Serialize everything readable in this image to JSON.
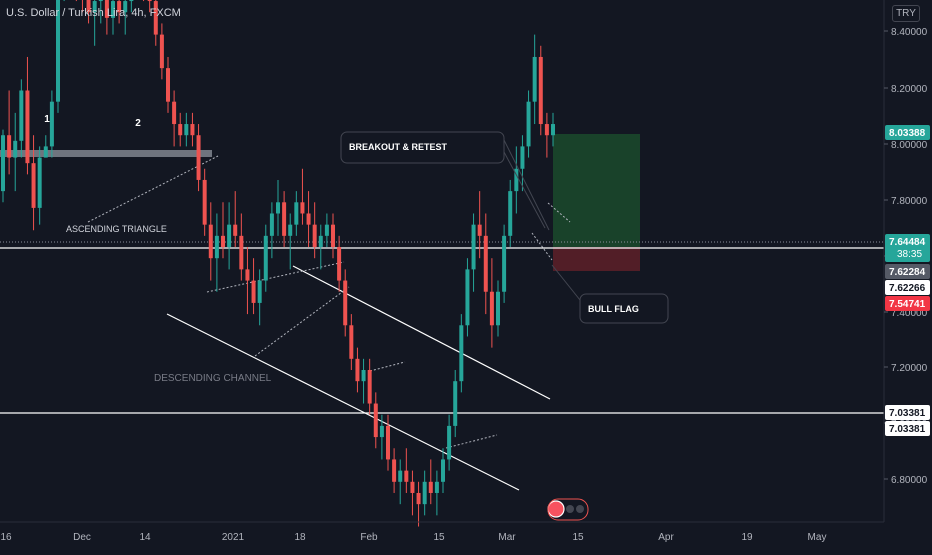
{
  "header": {
    "title": "U.S. Dollar / Turkish Lira, 4h, FXCM",
    "currency": "TRY"
  },
  "chart_data": {
    "type": "candlestick",
    "symbol": "USDTRY",
    "interval": "4h",
    "y_ticks": [
      "8.40000",
      "8.20000",
      "8.00000",
      "7.80000",
      "7.60000",
      "7.40000",
      "7.20000",
      "7.00000",
      "6.80000"
    ],
    "x_ticks": [
      "16",
      "Dec",
      "14",
      "2021",
      "18",
      "Feb",
      "15",
      "Mar",
      "15",
      "Apr",
      "19",
      "May"
    ],
    "price_labels": [
      {
        "value": "8.03388",
        "color": "#26a69a",
        "kind": "target"
      },
      {
        "value": "7.64484",
        "sub": "38:35",
        "color": "#26a69a",
        "kind": "last-price"
      },
      {
        "value": "7.62284",
        "color": "#555a66",
        "kind": "level"
      },
      {
        "value": "7.62266",
        "color": "#ffffff",
        "kind": "level"
      },
      {
        "value": "7.54741",
        "color": "#f23645",
        "kind": "stop"
      },
      {
        "value": "7.03381",
        "color": "#ffffff",
        "kind": "level"
      },
      {
        "value": "7.03381",
        "color": "#ffffff",
        "kind": "level"
      }
    ],
    "ohlc_path": [
      [
        7.52,
        7.63,
        7.5,
        7.62
      ],
      [
        7.62,
        7.7,
        7.55,
        7.58
      ],
      [
        7.58,
        7.66,
        7.52,
        7.61
      ],
      [
        7.61,
        7.72,
        7.58,
        7.7
      ],
      [
        7.7,
        7.76,
        7.55,
        7.57
      ],
      [
        7.57,
        7.62,
        7.45,
        7.49
      ],
      [
        7.49,
        7.6,
        7.46,
        7.58
      ],
      [
        7.58,
        7.62,
        7.58,
        7.6
      ],
      [
        7.6,
        7.7,
        7.58,
        7.68
      ],
      [
        7.68,
        7.92,
        7.66,
        7.9
      ],
      [
        7.9,
        8.02,
        7.86,
        7.98
      ],
      [
        7.98,
        8.03,
        7.9,
        7.94
      ],
      [
        7.94,
        7.99,
        7.86,
        7.9
      ],
      [
        7.9,
        7.96,
        7.84,
        7.88
      ],
      [
        7.88,
        7.92,
        7.82,
        7.84
      ],
      [
        7.84,
        7.9,
        7.78,
        7.86
      ],
      [
        7.86,
        7.92,
        7.82,
        7.88
      ],
      [
        7.88,
        7.9,
        7.8,
        7.83
      ],
      [
        7.83,
        7.88,
        7.8,
        7.86
      ],
      [
        7.86,
        7.9,
        7.82,
        7.84
      ],
      [
        7.84,
        7.88,
        7.8,
        7.86
      ],
      [
        7.86,
        7.94,
        7.84,
        7.92
      ],
      [
        7.92,
        8.02,
        7.88,
        7.94
      ],
      [
        7.94,
        7.98,
        7.86,
        7.88
      ],
      [
        7.88,
        7.92,
        7.84,
        7.86
      ],
      [
        7.86,
        7.88,
        7.78,
        7.8
      ],
      [
        7.8,
        7.82,
        7.72,
        7.74
      ],
      [
        7.74,
        7.76,
        7.66,
        7.68
      ],
      [
        7.68,
        7.7,
        7.6,
        7.64
      ],
      [
        7.64,
        7.66,
        7.6,
        7.62
      ],
      [
        7.62,
        7.66,
        7.6,
        7.64
      ],
      [
        7.64,
        7.66,
        7.6,
        7.62
      ],
      [
        7.62,
        7.64,
        7.52,
        7.54
      ],
      [
        7.54,
        7.56,
        7.44,
        7.46
      ],
      [
        7.46,
        7.5,
        7.36,
        7.4
      ],
      [
        7.4,
        7.48,
        7.34,
        7.44
      ],
      [
        7.44,
        7.5,
        7.4,
        7.42
      ],
      [
        7.42,
        7.5,
        7.38,
        7.46
      ],
      [
        7.46,
        7.52,
        7.42,
        7.44
      ],
      [
        7.44,
        7.48,
        7.36,
        7.38
      ],
      [
        7.38,
        7.42,
        7.3,
        7.36
      ],
      [
        7.36,
        7.4,
        7.3,
        7.32
      ],
      [
        7.32,
        7.38,
        7.28,
        7.36
      ],
      [
        7.36,
        7.46,
        7.34,
        7.44
      ],
      [
        7.44,
        7.5,
        7.4,
        7.48
      ],
      [
        7.48,
        7.54,
        7.44,
        7.5
      ],
      [
        7.5,
        7.52,
        7.42,
        7.44
      ],
      [
        7.44,
        7.48,
        7.38,
        7.46
      ],
      [
        7.46,
        7.52,
        7.44,
        7.5
      ],
      [
        7.5,
        7.56,
        7.46,
        7.48
      ],
      [
        7.48,
        7.52,
        7.42,
        7.46
      ],
      [
        7.46,
        7.5,
        7.4,
        7.42
      ],
      [
        7.42,
        7.46,
        7.38,
        7.44
      ],
      [
        7.44,
        7.48,
        7.42,
        7.46
      ],
      [
        7.46,
        7.48,
        7.4,
        7.42
      ],
      [
        7.42,
        7.44,
        7.34,
        7.36
      ],
      [
        7.36,
        7.38,
        7.26,
        7.28
      ],
      [
        7.28,
        7.3,
        7.2,
        7.22
      ],
      [
        7.22,
        7.24,
        7.16,
        7.18
      ],
      [
        7.18,
        7.22,
        7.14,
        7.2
      ],
      [
        7.2,
        7.22,
        7.12,
        7.14
      ],
      [
        7.14,
        7.16,
        7.06,
        7.08
      ],
      [
        7.08,
        7.12,
        7.04,
        7.1
      ],
      [
        7.1,
        7.12,
        7.02,
        7.04
      ],
      [
        7.04,
        7.06,
        6.98,
        7.0
      ],
      [
        7.0,
        7.04,
        6.96,
        7.02
      ],
      [
        7.02,
        7.06,
        6.98,
        7.0
      ],
      [
        7.0,
        7.02,
        6.94,
        6.98
      ],
      [
        6.98,
        7.0,
        6.92,
        6.96
      ],
      [
        6.96,
        7.02,
        6.94,
        7.0
      ],
      [
        7.0,
        7.04,
        6.96,
        6.98
      ],
      [
        6.98,
        7.02,
        6.94,
        7.0
      ],
      [
        7.0,
        7.06,
        6.98,
        7.04
      ],
      [
        7.04,
        7.12,
        7.02,
        7.1
      ],
      [
        7.1,
        7.2,
        7.08,
        7.18
      ],
      [
        7.18,
        7.3,
        7.16,
        7.28
      ],
      [
        7.28,
        7.4,
        7.26,
        7.38
      ],
      [
        7.38,
        7.48,
        7.34,
        7.46
      ],
      [
        7.46,
        7.52,
        7.4,
        7.44
      ],
      [
        7.44,
        7.48,
        7.3,
        7.34
      ],
      [
        7.34,
        7.4,
        7.24,
        7.28
      ],
      [
        7.28,
        7.36,
        7.26,
        7.34
      ],
      [
        7.34,
        7.46,
        7.32,
        7.44
      ],
      [
        7.44,
        7.54,
        7.42,
        7.52
      ],
      [
        7.52,
        7.6,
        7.48,
        7.56
      ],
      [
        7.56,
        7.62,
        7.52,
        7.6
      ],
      [
        7.6,
        7.7,
        7.58,
        7.68
      ],
      [
        7.68,
        7.8,
        7.64,
        7.76
      ],
      [
        7.76,
        7.78,
        7.62,
        7.64
      ],
      [
        7.64,
        7.66,
        7.58,
        7.62
      ],
      [
        7.62,
        7.66,
        7.6,
        7.64
      ]
    ],
    "annotations": [
      {
        "text": "1",
        "kind": "label"
      },
      {
        "text": "2",
        "kind": "label"
      },
      {
        "text": "ASCENDING TRIANGLE",
        "kind": "label"
      },
      {
        "text": "DESCENDING CHANNEL",
        "kind": "label"
      },
      {
        "text": "BREAKOUT & RETEST",
        "kind": "callout"
      },
      {
        "text": "BULL FLAG",
        "kind": "callout"
      }
    ],
    "colors": {
      "background": "#131722",
      "up": "#26a69a",
      "down": "#ef5350",
      "grid_text": "#b2b5be"
    }
  }
}
